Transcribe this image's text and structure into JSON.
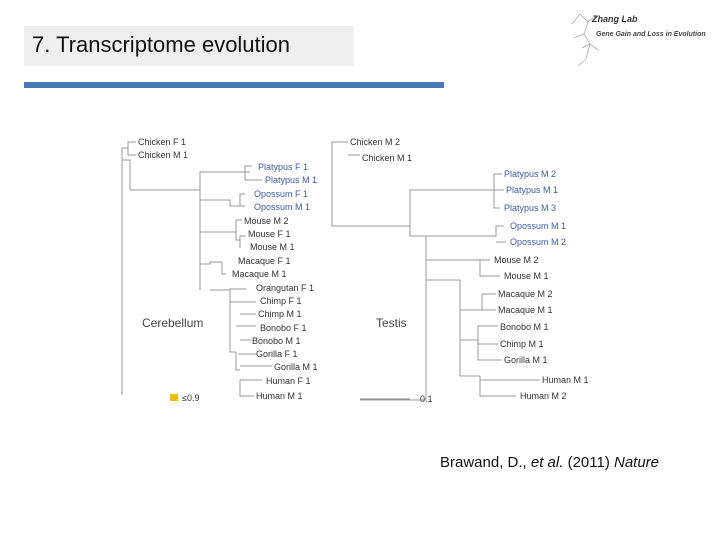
{
  "slide": {
    "title": "7. Transcriptome evolution"
  },
  "logo": {
    "name": "Zhang Lab",
    "subtitle": "Gene Gain and Loss in Evolution"
  },
  "cerebellum": {
    "label": "Cerebellum",
    "legend": "≤0.9",
    "leaves": [
      "Chicken F 1",
      "Chicken M 1",
      "Platypus F 1",
      "Platypus M 1",
      "Opossum F 1",
      "Opossum M 1",
      "Mouse M 2",
      "Mouse F 1",
      "Mouse M 1",
      "Macaque F 1",
      "Macaque M 1",
      "Orangutan F 1",
      "Chimp F 1",
      "Chimp M 1",
      "Bonobo F 1",
      "Bonobo M 1",
      "Gorilla F 1",
      "Gorilla M 1",
      "Human F 1",
      "Human M 1"
    ]
  },
  "testis": {
    "label": "Testis",
    "scale": "0.1",
    "leaves": [
      "Chicken M 2",
      "Chicken M 1",
      "Platypus M 2",
      "Platypus M 1",
      "Platypus M 3",
      "Opossum M 1",
      "Opossum M 2",
      "Mouse M 2",
      "Mouse M 1",
      "Macaque M 2",
      "Macaque M 1",
      "Bonobo M 1",
      "Chimp M 1",
      "Gorilla M 1",
      "Human M 1",
      "Human M 2"
    ]
  },
  "citation": {
    "authors": "Brawand, D., ",
    "etal": "et al.",
    "year": " (2011) ",
    "journal": "Nature"
  }
}
